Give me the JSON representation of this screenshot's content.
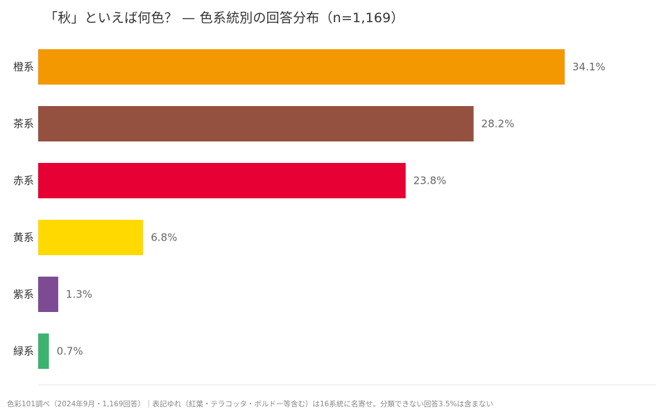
{
  "chart_data": {
    "type": "bar",
    "orientation": "horizontal",
    "title": "「秋」といえば何色？ — 色系統別の回答分布（n=1,169）",
    "categories": [
      "橙系",
      "茶系",
      "赤系",
      "黄系",
      "紫系",
      "緑系"
    ],
    "values": [
      34.1,
      28.2,
      23.8,
      6.8,
      1.3,
      0.7
    ],
    "value_labels": [
      "34.1%",
      "28.2%",
      "23.8%",
      "6.8%",
      "1.3%",
      "0.7%"
    ],
    "colors": [
      "#f39800",
      "#955140",
      "#e60033",
      "#ffd900",
      "#7d4b94",
      "#3cb371"
    ],
    "xlabel": "",
    "ylabel": "",
    "grid": false,
    "legend": "none"
  },
  "footnote": "色彩101調べ（2024年9月・1,169回答）｜表記ゆれ（紅葉・テラコッタ・ボルドー等含む）は16系統に名寄せ。分類できない回答3.5%は含まない"
}
